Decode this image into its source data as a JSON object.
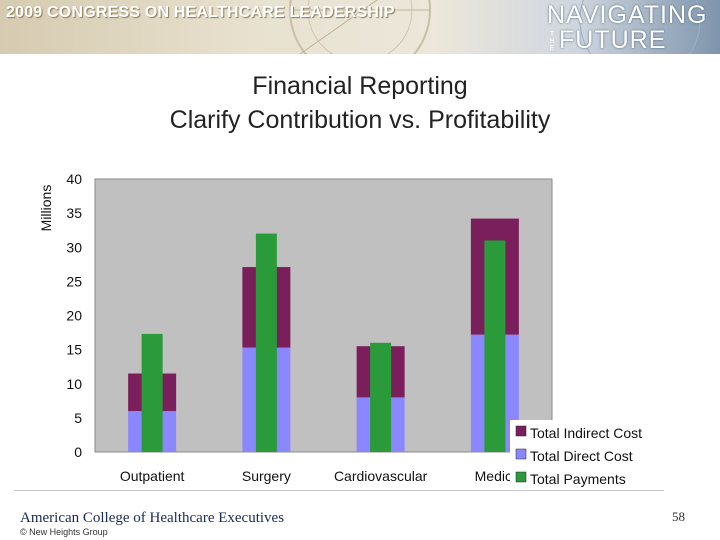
{
  "header": {
    "conference_title": "2009 CONGRESS ON HEALTHCARE LEADERSHIP",
    "logo_line1": "NAVIGATING",
    "logo_the": "THE",
    "logo_line2": "FUTURE"
  },
  "slide": {
    "title_line1": "Financial Reporting",
    "title_line2": "Clarify Contribution vs. Profitability"
  },
  "footer": {
    "organization": "American College of Healthcare Executives",
    "copyright": "© New Heights Group",
    "page_number": "58"
  },
  "colors": {
    "indirect": "#7a1f5c",
    "direct": "#8b87ff",
    "payments": "#2a9a3a",
    "plot_bg": "#c0c0c0"
  },
  "chart_data": {
    "type": "bar",
    "title": "",
    "xlabel": "",
    "ylabel": "Millions",
    "ylim": [
      0,
      40
    ],
    "yticks": [
      0,
      5,
      10,
      15,
      20,
      25,
      30,
      35,
      40
    ],
    "grid": false,
    "legend_position": "bottom-right",
    "categories": [
      "Outpatient",
      "Surgery",
      "Cardiovascular",
      "Medici"
    ],
    "series": [
      {
        "name": "Total Indirect Cost",
        "values": [
          5.5,
          11.8,
          7.5,
          17
        ]
      },
      {
        "name": "Total Direct Cost",
        "values": [
          6,
          15.3,
          8,
          17.2
        ]
      },
      {
        "name": "Total Payments",
        "values": [
          17.3,
          32,
          16,
          31
        ]
      }
    ]
  }
}
